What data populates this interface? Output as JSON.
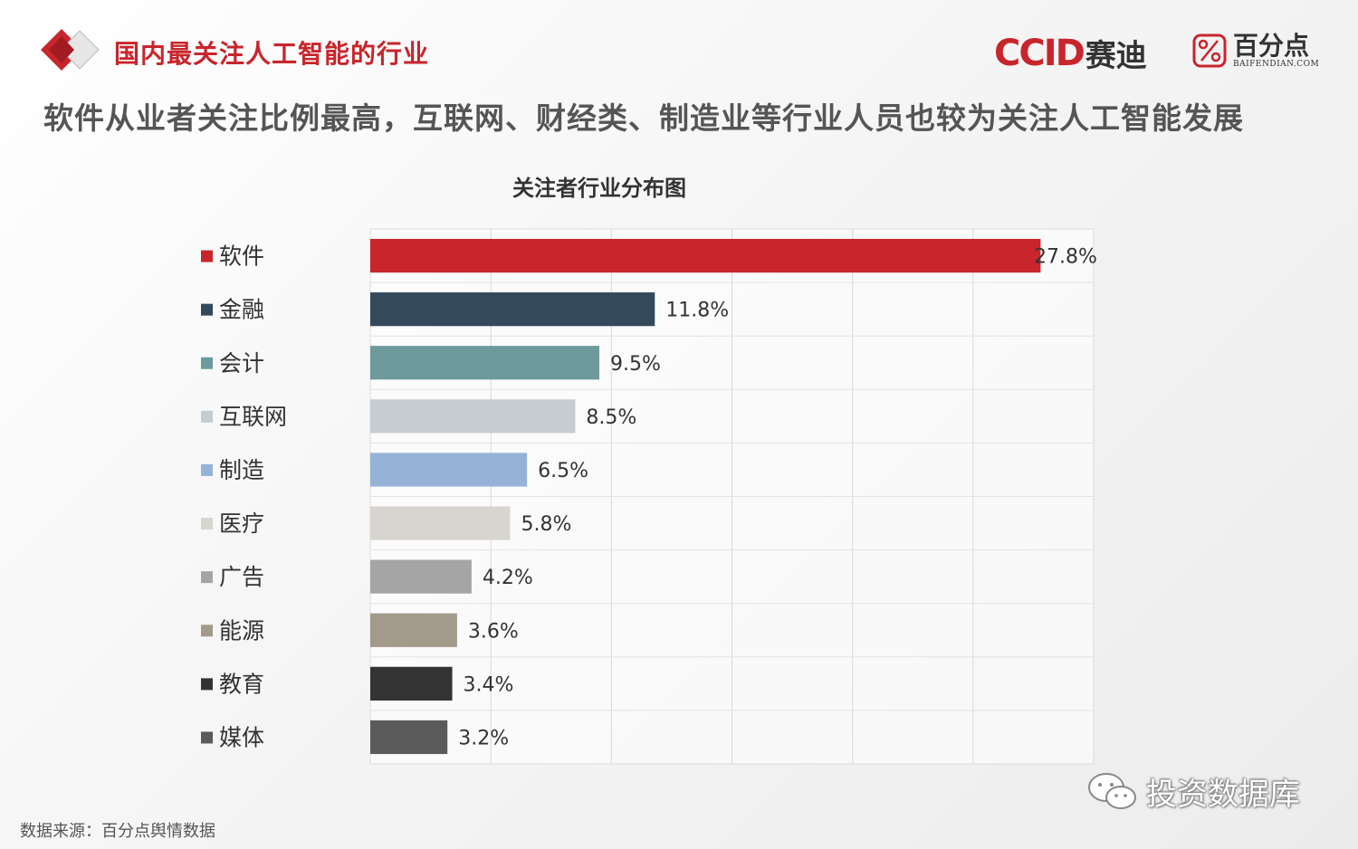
{
  "header": {
    "title": "国内最关注人工智能的行业",
    "logo_ccid": "CCID",
    "logo_ccid_cn": "赛迪",
    "logo_bfd_cn": "百分点",
    "logo_bfd_en": "BAIFENDIAN.COM"
  },
  "subtitle": "软件从业者关注比例最高，互联网、财经类、制造业等行业人员也较为关注人工智能发展",
  "footer": {
    "source": "数据来源：百分点舆情数据",
    "watermark": "投资数据库"
  },
  "colors": {
    "brand_red": "#c8252c"
  },
  "chart_data": {
    "type": "bar",
    "orientation": "horizontal",
    "title": "关注者行业分布图",
    "categories": [
      "软件",
      "金融",
      "会计",
      "互联网",
      "制造",
      "医疗",
      "广告",
      "能源",
      "教育",
      "媒体"
    ],
    "values": [
      27.8,
      11.8,
      9.5,
      8.5,
      6.5,
      5.8,
      4.2,
      3.6,
      3.4,
      3.2
    ],
    "labels": [
      "27.8%",
      "11.8%",
      "9.5%",
      "8.5%",
      "6.5%",
      "5.8%",
      "4.2%",
      "3.6%",
      "3.4%",
      "3.2%"
    ],
    "colors": [
      "#c8252c",
      "#34495c",
      "#6e9a9b",
      "#c5ccd2",
      "#95b3d7",
      "#d8d5d1",
      "#a5a5a5",
      "#a39a8c",
      "#333333",
      "#5a5a5a"
    ],
    "xlim": [
      0,
      30
    ],
    "grid": true,
    "legend": "left"
  }
}
